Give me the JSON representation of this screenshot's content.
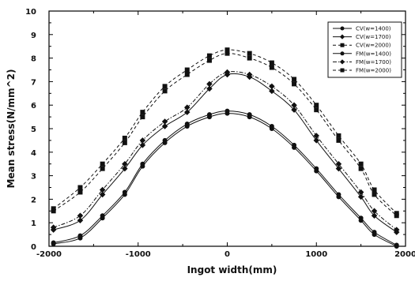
{
  "chart_data": {
    "type": "line",
    "title": "",
    "xlabel": "Ingot width(mm)",
    "ylabel": "Mean stress(N/mm^2)",
    "xlim": [
      -2000,
      2000
    ],
    "ylim": [
      0,
      10
    ],
    "xticks": [
      "-2000",
      "-1000",
      "0",
      "1000",
      "2000"
    ],
    "yticks": [
      "0",
      "1",
      "2",
      "3",
      "4",
      "5",
      "6",
      "7",
      "8",
      "9",
      "10"
    ],
    "grid": false,
    "legend_position": "top-right",
    "x": [
      -1950,
      -1650,
      -1400,
      -1150,
      -950,
      -700,
      -450,
      -200,
      0,
      250,
      500,
      750,
      1000,
      1250,
      1500,
      1650,
      1900
    ],
    "series": [
      {
        "name": "CV(w=1400)",
        "marker": "circle",
        "dash": "solid",
        "values": [
          0.1,
          0.35,
          1.2,
          2.2,
          3.4,
          4.4,
          5.1,
          5.5,
          5.65,
          5.5,
          5.0,
          4.2,
          3.2,
          2.1,
          1.1,
          0.5,
          0.0
        ]
      },
      {
        "name": "CV(w=1700)",
        "marker": "diamond",
        "dash": "solid",
        "values": [
          0.7,
          1.1,
          2.2,
          3.3,
          4.3,
          5.1,
          5.7,
          6.7,
          7.3,
          7.2,
          6.6,
          5.8,
          4.5,
          3.3,
          2.1,
          1.3,
          0.6
        ]
      },
      {
        "name": "CV(w=2000)",
        "marker": "square",
        "dash": "dash",
        "values": [
          1.5,
          2.3,
          3.3,
          4.4,
          5.5,
          6.6,
          7.3,
          7.9,
          8.2,
          8.0,
          7.6,
          6.9,
          5.8,
          4.5,
          3.3,
          2.2,
          1.3
        ]
      },
      {
        "name": "FM(w=1400)",
        "marker": "circle",
        "dash": "solid",
        "values": [
          0.15,
          0.45,
          1.3,
          2.3,
          3.5,
          4.5,
          5.2,
          5.6,
          5.75,
          5.6,
          5.1,
          4.3,
          3.3,
          2.2,
          1.2,
          0.6,
          0.05
        ]
      },
      {
        "name": "FM(w=1700)",
        "marker": "diamond",
        "dash": "dashdot",
        "values": [
          0.8,
          1.3,
          2.4,
          3.5,
          4.5,
          5.3,
          5.9,
          6.9,
          7.4,
          7.3,
          6.8,
          6.0,
          4.7,
          3.5,
          2.3,
          1.5,
          0.7
        ]
      },
      {
        "name": "FM(w=2000)",
        "marker": "square",
        "dash": "dash",
        "values": [
          1.6,
          2.5,
          3.5,
          4.6,
          5.7,
          6.8,
          7.5,
          8.1,
          8.35,
          8.2,
          7.8,
          7.1,
          6.0,
          4.7,
          3.5,
          2.4,
          1.4
        ]
      }
    ]
  }
}
